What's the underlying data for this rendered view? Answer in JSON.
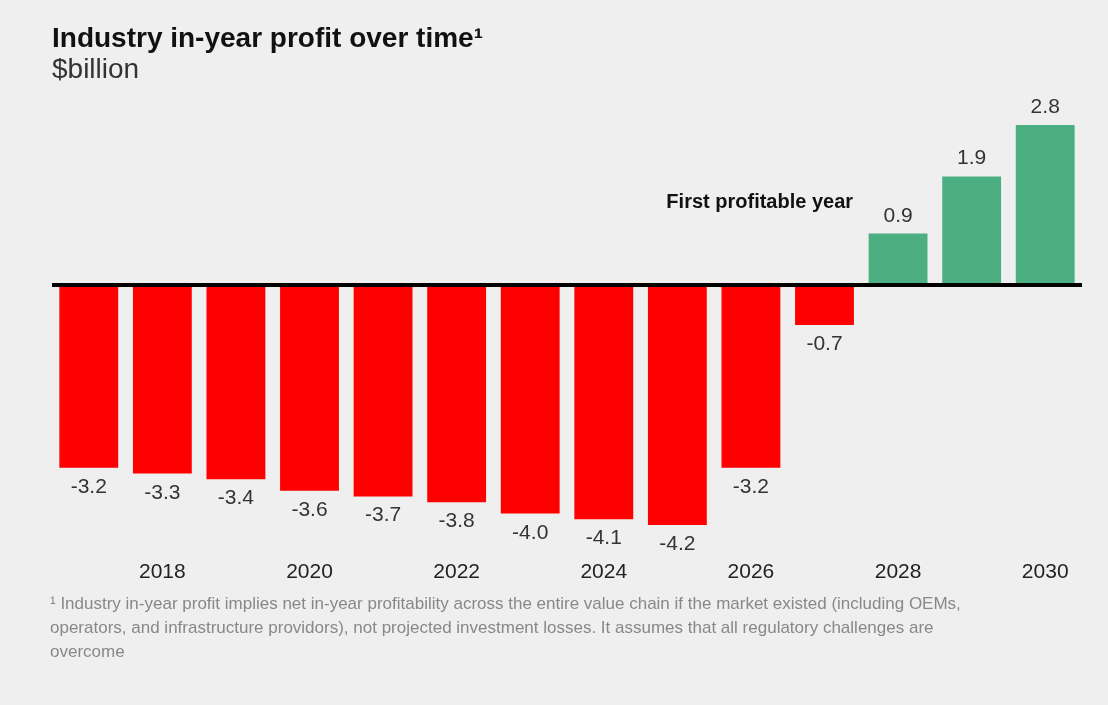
{
  "chart_data": {
    "type": "bar",
    "title": "Industry in-year profit over time¹",
    "subtitle": "$billion",
    "categories": [
      null,
      "2018",
      null,
      "2020",
      null,
      "2022",
      null,
      "2024",
      null,
      "2026",
      null,
      "2028",
      null,
      "2030"
    ],
    "values": [
      -3.2,
      -3.3,
      -3.4,
      -3.6,
      -3.7,
      -3.8,
      -4.0,
      -4.1,
      -4.2,
      -3.2,
      -0.7,
      0.9,
      1.9,
      2.8
    ],
    "colors": [
      "#ff0000",
      "#ff0000",
      "#ff0000",
      "#ff0000",
      "#ff0000",
      "#ff0000",
      "#ff0000",
      "#ff0000",
      "#ff0000",
      "#ff0000",
      "#ff0000",
      "#4caf82",
      "#4caf82",
      "#4caf82"
    ],
    "value_labels": [
      "-3.2",
      "-3.3",
      "-3.4",
      "-3.6",
      "-3.7",
      "-3.8",
      "-4.0",
      "-4.1",
      "-4.2",
      "-3.2",
      "-0.7",
      "0.9",
      "1.9",
      "2.8"
    ],
    "annotations": [
      {
        "text": "First profitable year",
        "x": "2028",
        "y": 0.9
      },
      "¹ Industry in-year profit implies net in-year profitability across the entire value chain if the market existed (including OEMs, operators, and infrastructure providors), not projected investment losses. It assumes that all regulatory challenges are overcome"
    ]
  }
}
